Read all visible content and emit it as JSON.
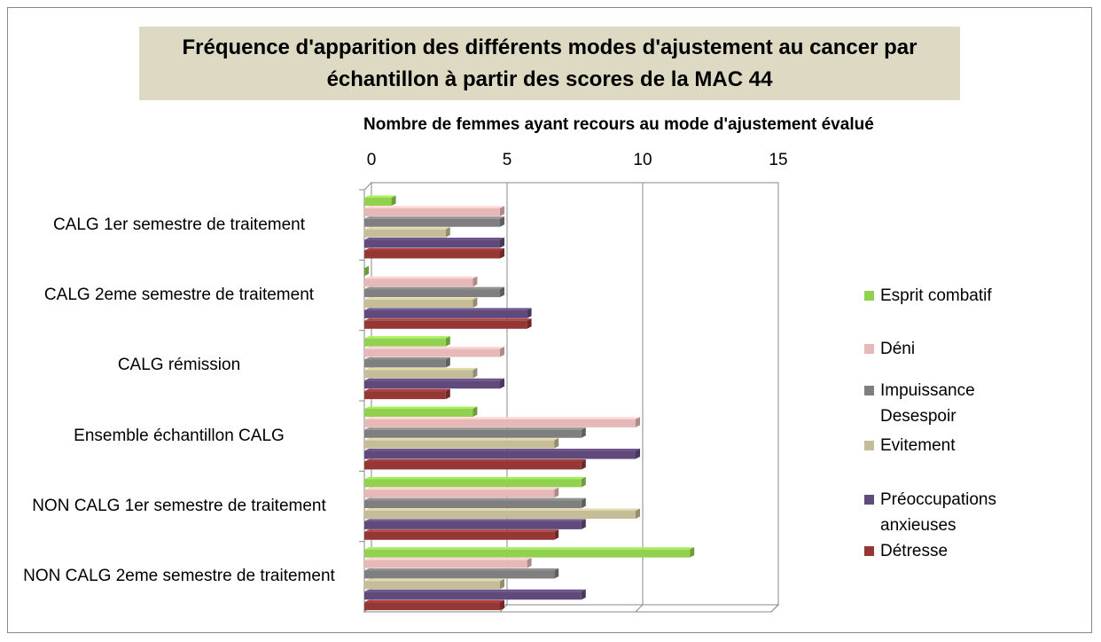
{
  "chart_data": {
    "type": "bar3d_horizontal",
    "title": "Fréquence d'apparition des différents modes d'ajustement au cancer par échantillon à partir des scores de la MAC 44",
    "x_label": "Nombre de femmes ayant recours au mode d'ajustement évalué",
    "categories": [
      "CALG 1er semestre de traitement",
      "CALG 2eme semestre de traitement",
      "CALG rémission",
      "Ensemble échantillon CALG",
      "NON CALG 1er semestre de traitement",
      "NON CALG 2eme semestre de traitement"
    ],
    "series": [
      {
        "name": "Esprit combatif",
        "color": "#92d050",
        "values": [
          1,
          0,
          3,
          4,
          8,
          12
        ]
      },
      {
        "name": "Déni",
        "color": "#e6b9b8",
        "values": [
          5,
          4,
          5,
          10,
          7,
          6
        ]
      },
      {
        "name": "Impuissance Desespoir",
        "color": "#7f7f7f",
        "values": [
          5,
          5,
          3,
          8,
          8,
          7
        ]
      },
      {
        "name": "Evitement",
        "color": "#c4bd97",
        "values": [
          3,
          4,
          4,
          7,
          10,
          5
        ]
      },
      {
        "name": "Préoccupations anxieuses",
        "color": "#604a7b",
        "values": [
          5,
          6,
          5,
          10,
          8,
          8
        ]
      },
      {
        "name": "Détresse",
        "color": "#953735",
        "values": [
          5,
          6,
          3,
          8,
          7,
          5
        ]
      }
    ],
    "xlim": [
      0,
      15
    ],
    "xticks": [
      0,
      5,
      10,
      15
    ],
    "grid": true,
    "legend": "right"
  }
}
